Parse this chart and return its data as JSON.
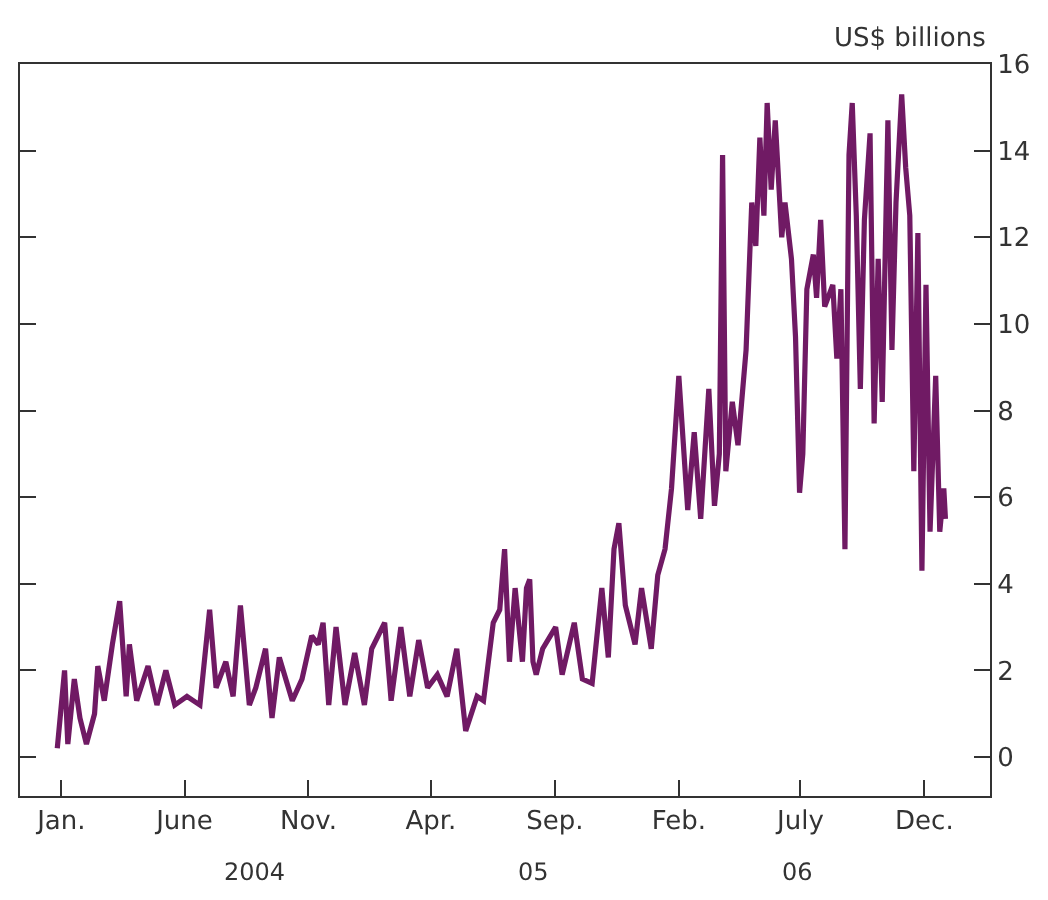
{
  "chart_data": {
    "type": "line",
    "ylabel": "US$ billions",
    "x": [
      "2003-12-27",
      "2004-01-05",
      "2004-01-09",
      "2004-01-17",
      "2004-01-24",
      "2004-02-01",
      "2004-02-11",
      "2004-02-15",
      "2004-02-23",
      "2004-03-04",
      "2004-03-13",
      "2004-03-21",
      "2004-03-25",
      "2004-04-03",
      "2004-04-17",
      "2004-04-28",
      "2004-05-09",
      "2004-05-20",
      "2004-06-04",
      "2004-06-20",
      "2004-07-02",
      "2004-07-10",
      "2004-07-22",
      "2004-07-31",
      "2004-08-09",
      "2004-08-20",
      "2004-08-28",
      "2004-09-09",
      "2004-09-17",
      "2004-09-26",
      "2004-10-12",
      "2004-10-24",
      "2004-11-05",
      "2004-11-13",
      "2004-11-19",
      "2004-11-26",
      "2004-12-05",
      "2004-12-16",
      "2004-12-28",
      "2005-01-09",
      "2005-01-18",
      "2005-02-03",
      "2005-02-11",
      "2005-02-23",
      "2005-03-06",
      "2005-03-17",
      "2005-03-28",
      "2005-04-09",
      "2005-04-21",
      "2005-05-03",
      "2005-05-14",
      "2005-05-28",
      "2005-06-05",
      "2005-06-17",
      "2005-06-25",
      "2005-07-01",
      "2005-07-07",
      "2005-07-14",
      "2005-07-23",
      "2005-07-28",
      "2005-08-01",
      "2005-08-05",
      "2005-08-09",
      "2005-08-17",
      "2005-09-02",
      "2005-09-10",
      "2005-09-25",
      "2005-10-05",
      "2005-10-17",
      "2005-10-29",
      "2005-11-06",
      "2005-11-13",
      "2005-11-19",
      "2005-11-27",
      "2005-12-09",
      "2005-12-17",
      "2005-12-29",
      "2006-01-06",
      "2006-01-15",
      "2006-01-23",
      "2006-02-01",
      "2006-02-12",
      "2006-02-20",
      "2006-02-28",
      "2006-03-10",
      "2006-03-17",
      "2006-03-23",
      "2006-03-27",
      "2006-03-31",
      "2006-04-08",
      "2006-04-15",
      "2006-04-25",
      "2006-05-02",
      "2006-05-07",
      "2006-05-12",
      "2006-05-17",
      "2006-05-21",
      "2006-05-26",
      "2006-05-31",
      "2006-06-08",
      "2006-06-12",
      "2006-06-20",
      "2006-06-25",
      "2006-06-30",
      "2006-07-04",
      "2006-07-09",
      "2006-07-17",
      "2006-07-21",
      "2006-07-26",
      "2006-07-31",
      "2006-08-10",
      "2006-08-15",
      "2006-08-20",
      "2006-08-25",
      "2006-08-30",
      "2006-09-03",
      "2006-09-08",
      "2006-09-13",
      "2006-09-18",
      "2006-09-25",
      "2006-09-30",
      "2006-10-05",
      "2006-10-10",
      "2006-10-17",
      "2006-10-22",
      "2006-10-27",
      "2006-11-03",
      "2006-11-08",
      "2006-11-13",
      "2006-11-18",
      "2006-11-23",
      "2006-11-28",
      "2006-12-03",
      "2006-12-08",
      "2006-12-15",
      "2006-12-20",
      "2006-12-25",
      "2006-12-27"
    ],
    "series": [
      {
        "color": "#701a64",
        "values": [
          0.2,
          2.0,
          0.3,
          1.8,
          0.9,
          0.3,
          1.0,
          2.1,
          1.3,
          2.6,
          3.6,
          1.4,
          2.6,
          1.3,
          2.1,
          1.2,
          2.0,
          1.2,
          1.4,
          1.2,
          3.4,
          1.6,
          2.2,
          1.4,
          3.5,
          1.2,
          1.6,
          2.5,
          0.9,
          2.3,
          1.3,
          1.8,
          2.8,
          2.6,
          3.1,
          1.2,
          3.0,
          1.2,
          2.4,
          1.2,
          2.5,
          3.1,
          1.3,
          3.0,
          1.4,
          2.7,
          1.6,
          1.9,
          1.4,
          2.5,
          0.6,
          1.4,
          1.3,
          3.1,
          3.4,
          4.8,
          2.2,
          3.9,
          2.2,
          3.9,
          4.1,
          2.2,
          1.9,
          2.5,
          3.0,
          1.9,
          3.1,
          1.8,
          1.7,
          3.9,
          2.3,
          4.8,
          5.4,
          3.5,
          2.6,
          3.9,
          2.5,
          4.2,
          4.8,
          6.2,
          8.8,
          5.7,
          7.5,
          5.5,
          8.5,
          5.8,
          7.0,
          13.9,
          6.6,
          8.2,
          7.2,
          9.4,
          12.8,
          11.8,
          14.3,
          12.5,
          15.1,
          13.1,
          14.7,
          12.0,
          12.8,
          11.5,
          9.7,
          6.1,
          7.0,
          10.8,
          11.6,
          10.6,
          12.4,
          10.4,
          10.9,
          9.2,
          10.8,
          4.8,
          13.9,
          15.1,
          12.5,
          8.5,
          12.4,
          14.4,
          7.7,
          11.5,
          8.2,
          14.7,
          9.4,
          12.8,
          15.3,
          13.6,
          12.5,
          6.6,
          12.1,
          4.3,
          10.9,
          5.2,
          8.8,
          5.2,
          6.2,
          5.5
        ]
      }
    ],
    "xlim": [
      "2003-11-11",
      "2007-02-20"
    ],
    "xticks": [
      {
        "value": "2004-01-01",
        "label": "Jan."
      },
      {
        "value": "2004-06-01",
        "label": "June"
      },
      {
        "value": "2004-11-01",
        "label": "Nov."
      },
      {
        "value": "2005-04-01",
        "label": "Apr."
      },
      {
        "value": "2005-09-01",
        "label": "Sep."
      },
      {
        "value": "2006-02-01",
        "label": "Feb."
      },
      {
        "value": "2006-07-01",
        "label": "July"
      },
      {
        "value": "2006-12-01",
        "label": "Dec."
      }
    ],
    "ylim": [
      -0.9,
      16
    ],
    "yticks": [
      0,
      2,
      4,
      6,
      8,
      10,
      12,
      14,
      16
    ],
    "annotations": [
      "2004",
      "05",
      "06"
    ],
    "marker": "none",
    "line_style": "solid"
  }
}
